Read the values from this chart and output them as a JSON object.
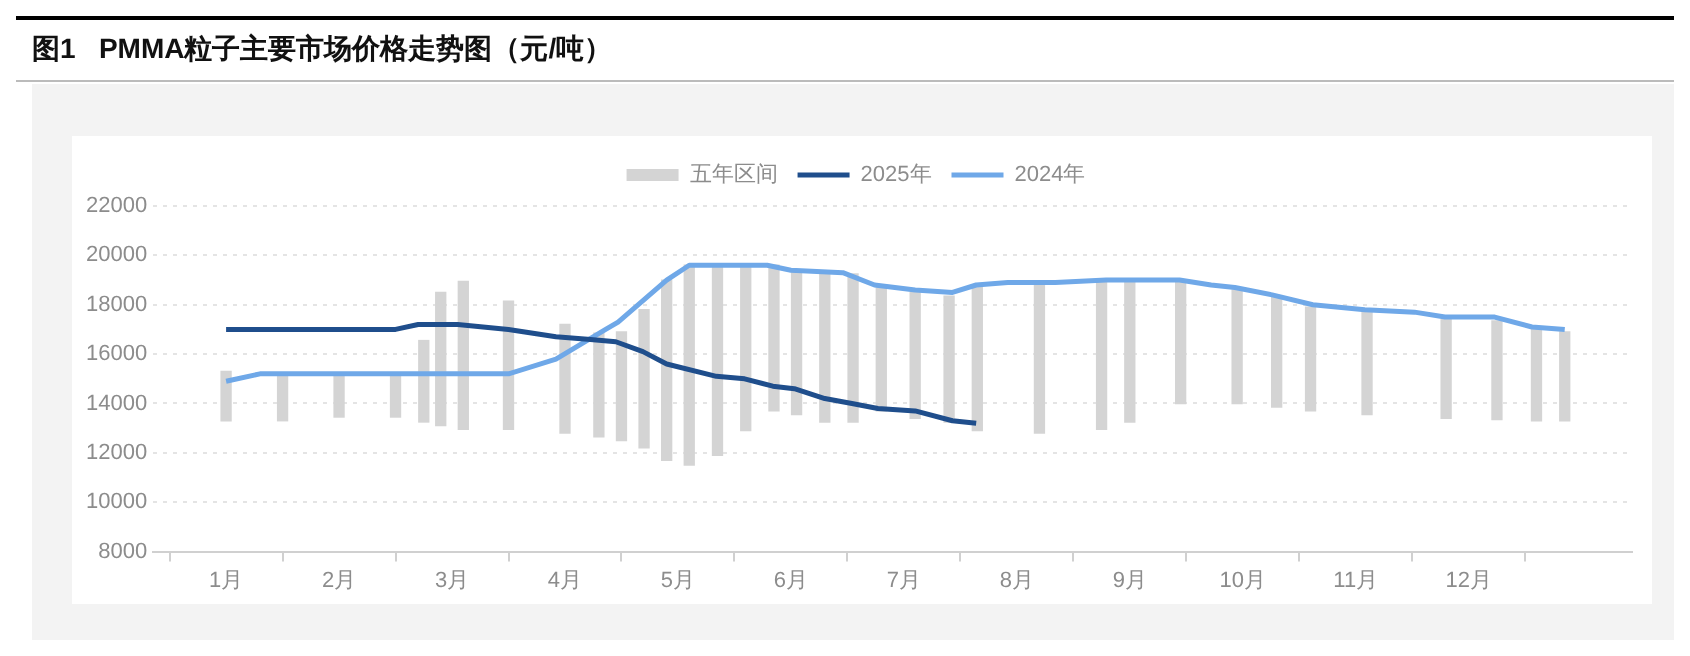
{
  "chart_data": {
    "type": "line",
    "title": "图1   PMMA粒子主要市场价格走势图（元/吨）",
    "xlim": [
      0.9,
      12.9
    ],
    "xticks": [
      {
        "value": 1,
        "label": "1月"
      },
      {
        "value": 2,
        "label": "2月"
      },
      {
        "value": 3,
        "label": "3月"
      },
      {
        "value": 4,
        "label": "4月"
      },
      {
        "value": 5,
        "label": "5月"
      },
      {
        "value": 6,
        "label": "6月"
      },
      {
        "value": 7,
        "label": "7月"
      },
      {
        "value": 8,
        "label": "8月"
      },
      {
        "value": 9,
        "label": "9月"
      },
      {
        "value": 10,
        "label": "10月"
      },
      {
        "value": 11,
        "label": "11月"
      },
      {
        "value": 12,
        "label": "12月"
      }
    ],
    "ylim": [
      8000,
      22000
    ],
    "yticks": [
      8000,
      10000,
      12000,
      14000,
      16000,
      18000,
      20000,
      22000
    ],
    "grid": "y",
    "legend": "top",
    "marker": "none",
    "series": [
      {
        "name": "五年区间",
        "type": "bar",
        "color": "#d4d4d4",
        "x": [
          1,
          1.5,
          2,
          2.5,
          2.75,
          2.9,
          3.1,
          3.5,
          4,
          4.3,
          4.5,
          4.7,
          4.9,
          5.1,
          5.35,
          5.6,
          5.85,
          6.05,
          6.3,
          6.55,
          6.8,
          7.1,
          7.4,
          7.65,
          8.2,
          8.75,
          9.0,
          9.45,
          9.95,
          10.3,
          10.6,
          11.1,
          11.8,
          12.25,
          12.6,
          12.85
        ],
        "base": [
          13300,
          13300,
          13450,
          13450,
          13250,
          13100,
          12950,
          12950,
          12800,
          12650,
          12500,
          12200,
          11700,
          11500,
          11900,
          12900,
          13700,
          13550,
          13250,
          13250,
          13700,
          13400,
          13250,
          12900,
          12800,
          12950,
          13250,
          14000,
          14000,
          13850,
          13700,
          13550,
          13400,
          13350,
          13300,
          13300
        ],
        "values": [
          2000,
          1800,
          1800,
          1800,
          3300,
          5400,
          6000,
          5200,
          4400,
          4200,
          4400,
          5600,
          7300,
          8100,
          7700,
          6700,
          5900,
          5800,
          6000,
          6000,
          5000,
          5100,
          5100,
          5800,
          6000,
          6000,
          5800,
          5000,
          4600,
          4500,
          4200,
          4200,
          4000,
          4000,
          3700,
          3600
        ]
      },
      {
        "name": "2025年",
        "color": "#1f4e8c",
        "x": [
          1,
          2.5,
          2.7,
          3.05,
          3.5,
          3.92,
          4.2,
          4.45,
          4.69,
          4.9,
          5.34,
          5.59,
          5.84,
          6.03,
          6.3,
          6.54,
          6.77,
          7.1,
          7.43,
          7.64
        ],
        "values": [
          17000,
          17000,
          17200,
          17200,
          17000,
          16700,
          16600,
          16500,
          16100,
          15600,
          15100,
          15000,
          14700,
          14600,
          14200,
          14000,
          13800,
          13700,
          13300,
          13200
        ]
      },
      {
        "name": "2024年",
        "color": "#6fa8e8",
        "x": [
          1,
          1.3,
          3.5,
          3.92,
          4.36,
          4.47,
          4.9,
          5.1,
          5.79,
          6.0,
          6.46,
          6.74,
          7.1,
          7.43,
          7.64,
          7.92,
          8.34,
          8.79,
          9.0,
          9.44,
          9.72,
          9.93,
          10.26,
          10.62,
          11.08,
          11.52,
          11.79,
          12.23,
          12.56,
          12.85
        ],
        "values": [
          14900,
          15200,
          15200,
          15800,
          17000,
          17300,
          19000,
          19600,
          19600,
          19400,
          19300,
          18800,
          18600,
          18500,
          18800,
          18900,
          18900,
          19000,
          19000,
          19000,
          18800,
          18700,
          18400,
          18000,
          17800,
          17700,
          17500,
          17500,
          17100,
          17000
        ]
      }
    ]
  }
}
